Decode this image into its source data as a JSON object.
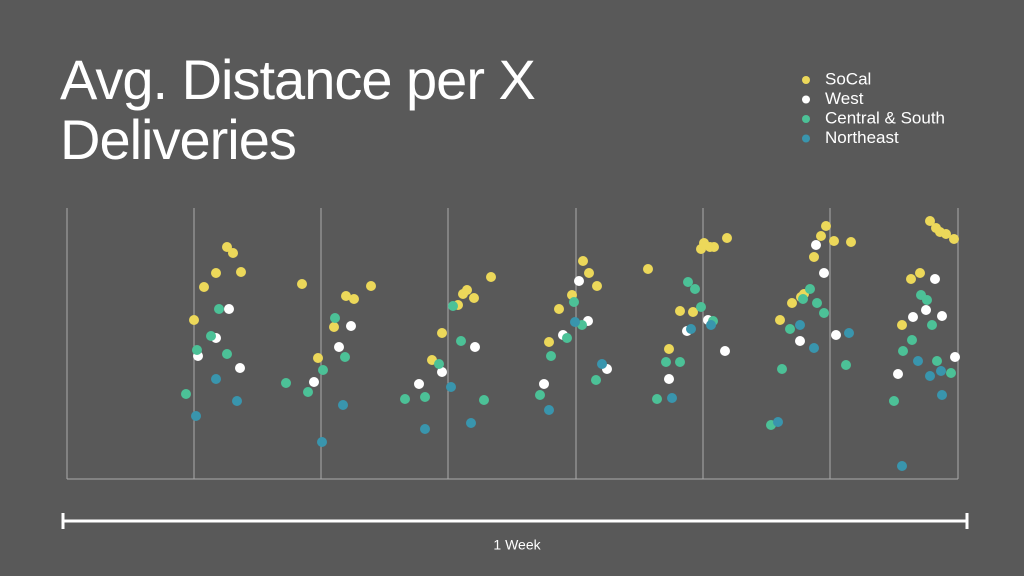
{
  "chart_data": {
    "type": "scatter",
    "title": "Avg. Distance per X Deliveries",
    "annotation": "1 Week",
    "xlim": [
      0,
      891
    ],
    "ylim": [
      0,
      271
    ],
    "xticks": [
      127,
      254,
      381,
      509,
      636,
      763,
      891
    ],
    "grid": true,
    "legend": "top-right",
    "series": [
      {
        "name": "SoCal",
        "color": "#ecd85a",
        "x": [
          127,
          137,
          149,
          160,
          166,
          174,
          235,
          251,
          267,
          279,
          287,
          304,
          365,
          375,
          391,
          396,
          400,
          407,
          424,
          482,
          492,
          505,
          516,
          522,
          530,
          581,
          602,
          613,
          626,
          634,
          637,
          643,
          647,
          660,
          713,
          725,
          734,
          737,
          747,
          754,
          759,
          767,
          784,
          835,
          844,
          853,
          863,
          869,
          873,
          879,
          887
        ],
        "values": [
          159,
          192,
          206,
          232,
          226,
          207,
          195,
          121,
          152,
          183,
          180,
          193,
          119,
          146,
          174,
          185,
          189,
          181,
          202,
          137,
          170,
          184,
          218,
          206,
          193,
          210,
          130,
          168,
          167,
          230,
          236,
          232,
          232,
          241,
          159,
          176,
          182,
          185,
          222,
          243,
          253,
          238,
          237,
          154,
          200,
          206,
          258,
          251,
          247,
          245,
          240
        ]
      },
      {
        "name": "West",
        "color": "#ffffff",
        "x": [
          131,
          149,
          162,
          173,
          247,
          272,
          284,
          352,
          375,
          408,
          477,
          496,
          512,
          521,
          540,
          602,
          620,
          641,
          658,
          733,
          749,
          757,
          769,
          831,
          846,
          859,
          868,
          875,
          888
        ],
        "values": [
          123,
          141,
          170,
          111,
          97,
          132,
          153,
          95,
          107,
          132,
          95,
          144,
          198,
          158,
          110,
          100,
          148,
          159,
          128,
          138,
          234,
          206,
          144,
          105,
          162,
          169,
          200,
          163,
          122
        ]
      },
      {
        "name": "Central & South",
        "color": "#4cc197",
        "x": [
          119,
          130,
          144,
          152,
          160,
          219,
          241,
          256,
          268,
          278,
          338,
          358,
          372,
          386,
          394,
          417,
          473,
          484,
          500,
          507,
          515,
          529,
          590,
          599,
          613,
          621,
          628,
          634,
          646,
          704,
          715,
          723,
          736,
          743,
          750,
          757,
          779,
          827,
          836,
          845,
          854,
          860,
          865,
          870,
          884
        ],
        "values": [
          85,
          129,
          143,
          170,
          125,
          96,
          87,
          109,
          161,
          122,
          80,
          82,
          115,
          173,
          138,
          79,
          84,
          123,
          141,
          177,
          154,
          99,
          80,
          117,
          117,
          197,
          190,
          172,
          158,
          54,
          110,
          150,
          180,
          190,
          176,
          166,
          114,
          78,
          128,
          139,
          184,
          179,
          154,
          118,
          106
        ]
      },
      {
        "name": "Northeast",
        "color": "#3995ad",
        "x": [
          129,
          149,
          170,
          255,
          276,
          358,
          384,
          404,
          482,
          508,
          535,
          605,
          624,
          644,
          711,
          733,
          747,
          782,
          835,
          851,
          863,
          874,
          875
        ],
        "values": [
          63,
          100,
          78,
          37,
          74,
          50,
          92,
          56,
          69,
          157,
          115,
          81,
          150,
          154,
          57,
          154,
          131,
          146,
          13,
          118,
          103,
          108,
          84
        ]
      }
    ]
  }
}
